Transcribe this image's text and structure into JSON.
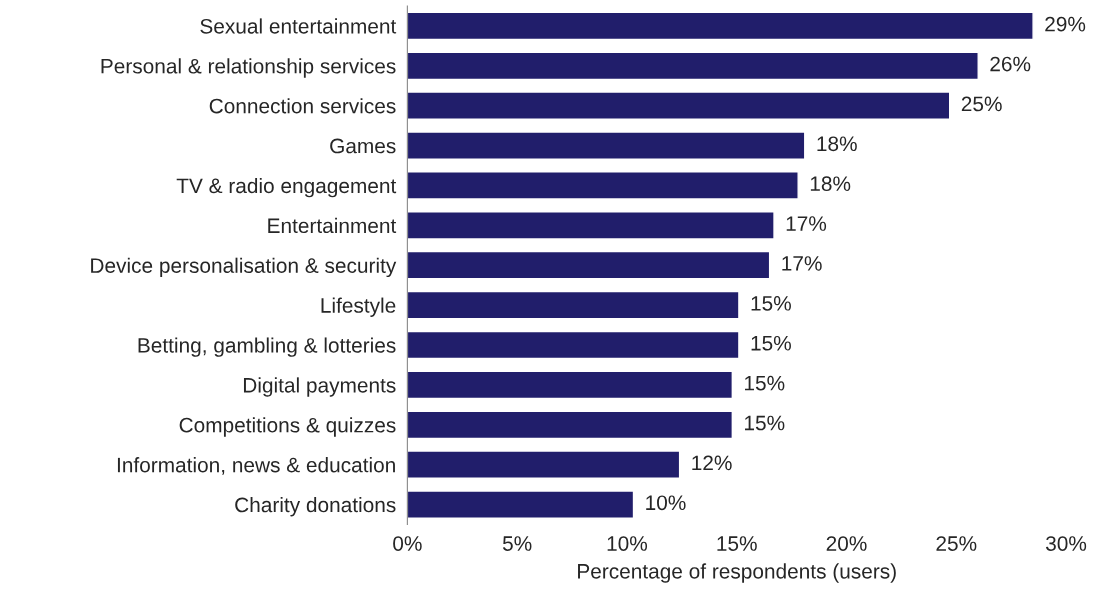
{
  "chart_data": {
    "type": "bar",
    "orientation": "horizontal",
    "xlabel": "Percentage of respondents (users)",
    "categories": [
      "Sexual entertainment",
      "Personal & relationship services",
      "Connection services",
      "Games",
      "TV & radio engagement",
      "Entertainment",
      "Device personalisation & security",
      "Lifestyle",
      "Betting, gambling & lotteries",
      "Digital payments",
      "Competitions & quizzes",
      "Information, news & education",
      "Charity donations"
    ],
    "values": [
      28.5,
      26.0,
      24.7,
      18.1,
      17.8,
      16.7,
      16.5,
      15.1,
      15.1,
      14.8,
      14.8,
      12.4,
      10.3
    ],
    "value_labels": [
      "29%",
      "26%",
      "25%",
      "18%",
      "18%",
      "17%",
      "17%",
      "15%",
      "15%",
      "15%",
      "15%",
      "12%",
      "10%"
    ],
    "color": "#211e6b",
    "xlim": [
      0,
      30
    ],
    "xticks": [
      {
        "value": 0,
        "label": "0%"
      },
      {
        "value": 5,
        "label": "5%"
      },
      {
        "value": 10,
        "label": "10%"
      },
      {
        "value": 15,
        "label": "15%"
      },
      {
        "value": 20,
        "label": "20%"
      },
      {
        "value": 25,
        "label": "25%"
      },
      {
        "value": 30,
        "label": "30%"
      }
    ],
    "grid": false,
    "legend": false
  }
}
